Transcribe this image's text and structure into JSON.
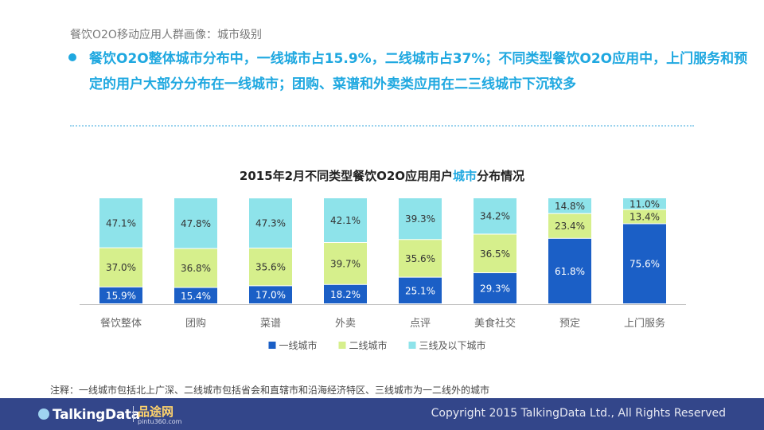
{
  "header": {
    "title": "餐饮O2O移动应用人群画像：城市级别",
    "headline": "餐饮O2O整体城市分布中，一线城市占15.9%，二线城市占37%；不同类型餐饮O2O应用中，上门服务和预定的用户大部分分布在一线城市；团购、菜谱和外卖类应用在二三线城市下沉较多"
  },
  "chart_title": {
    "prefix": "2015年2月不同类型餐饮O2O应用用户",
    "highlight": "城市",
    "suffix": "分布情况"
  },
  "chart_data": {
    "type": "bar",
    "stacked": true,
    "normalized": true,
    "title": "2015年2月不同类型餐饮O2O应用用户城市分布情况",
    "categories": [
      "餐饮整体",
      "团购",
      "菜谱",
      "外卖",
      "点评",
      "美食社交",
      "预定",
      "上门服务"
    ],
    "series": [
      {
        "name": "一线城市",
        "color": "#1b5fc6",
        "values": [
          15.9,
          15.4,
          17.0,
          18.2,
          25.1,
          29.3,
          61.8,
          75.6
        ]
      },
      {
        "name": "二线城市",
        "color": "#d6ef8c",
        "values": [
          37.0,
          36.8,
          35.6,
          39.7,
          35.6,
          36.5,
          23.4,
          13.4
        ]
      },
      {
        "name": "三线及以下城市",
        "color": "#8ee3ea",
        "values": [
          47.1,
          47.8,
          47.3,
          42.1,
          39.3,
          34.2,
          14.8,
          11.0
        ]
      }
    ],
    "value_suffix": "%",
    "legend_position": "bottom",
    "ylim": [
      0,
      100
    ]
  },
  "footnote": "注释：一线城市包括北上广深、二线城市包括省会和直辖市和沿海经济特区、三线城市为一二线外的城市",
  "footer": {
    "logo": "TalkingData",
    "partner": "品途网",
    "partner_sub": "pintu360.com",
    "copyright": "Copyright 2015 TalkingData Ltd., All Rights Reserved"
  }
}
